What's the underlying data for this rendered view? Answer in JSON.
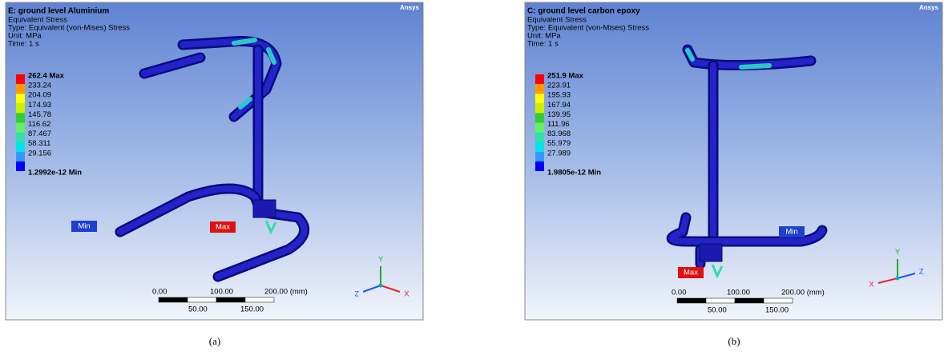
{
  "panels": [
    {
      "logo": "Ansys",
      "title": "E: ground level Aluminium",
      "lines": [
        "Equivalent Stress",
        "Type: Equivalent (von-Mises) Stress",
        "Unit: MPa",
        "Time: 1 s"
      ],
      "legend": [
        "262.4 Max",
        "233.24",
        "204.09",
        "174.93",
        "145.78",
        "116.62",
        "87.467",
        "58.311",
        "29.156",
        "1.2992e-12 Min"
      ],
      "min_tag": "Min",
      "max_tag": "Max",
      "scale_top": [
        "0.00",
        "100.00",
        "200.00 (mm)"
      ],
      "scale_bottom": [
        "50.00",
        "150.00"
      ],
      "axes": [
        "Y",
        "Z",
        "X"
      ],
      "caption": "(a)"
    },
    {
      "logo": "Ansys",
      "title": "C: ground level carbon epoxy",
      "lines": [
        "Equivalent Stress",
        "Type: Equivalent (von-Mises) Stress",
        "Unit: MPa",
        "Time: 1 s"
      ],
      "legend": [
        "251.9 Max",
        "223.91",
        "195.93",
        "167.94",
        "139.95",
        "111.96",
        "83.968",
        "55.979",
        "27.989",
        "1.9805e-12 Min"
      ],
      "min_tag": "Min",
      "max_tag": "Max",
      "scale_top": [
        "0.00",
        "100.00",
        "200.00 (mm)"
      ],
      "scale_bottom": [
        "50.00",
        "150.00"
      ],
      "axes": [
        "Y",
        "Z",
        "X"
      ],
      "caption": "(b)"
    }
  ]
}
